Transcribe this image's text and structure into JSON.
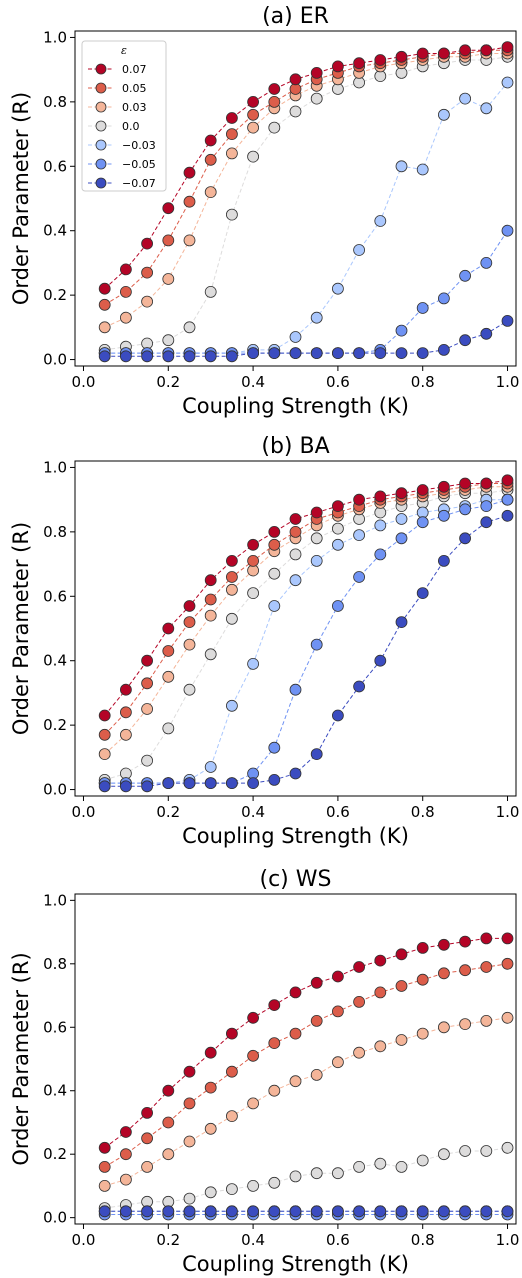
{
  "chart_data": [
    {
      "type": "line",
      "title": "(a) ER",
      "xlabel": "Coupling Strength (K)",
      "ylabel": "Order Parameter (R)",
      "xlim": [
        -0.02,
        1.02
      ],
      "ylim": [
        -0.02,
        1.02
      ],
      "xticks": [
        "0.0",
        "0.2",
        "0.4",
        "0.6",
        "0.8",
        "1.0"
      ],
      "yticks": [
        "0.0",
        "0.2",
        "0.4",
        "0.6",
        "0.8",
        "1.0"
      ],
      "grid": false,
      "legend": {
        "title": "ε",
        "placement": "top-left"
      },
      "x": [
        0.05,
        0.1,
        0.15,
        0.2,
        0.25,
        0.3,
        0.35,
        0.4,
        0.45,
        0.5,
        0.55,
        0.6,
        0.65,
        0.7,
        0.75,
        0.8,
        0.85,
        0.9,
        0.95,
        1.0
      ],
      "series": [
        {
          "name": "0.07",
          "color": "#b40426",
          "values": [
            0.22,
            0.28,
            0.36,
            0.47,
            0.58,
            0.68,
            0.75,
            0.8,
            0.84,
            0.87,
            0.89,
            0.91,
            0.92,
            0.93,
            0.94,
            0.95,
            0.95,
            0.96,
            0.96,
            0.97
          ]
        },
        {
          "name": "0.05",
          "color": "#dc5d4a",
          "values": [
            0.17,
            0.21,
            0.27,
            0.37,
            0.49,
            0.62,
            0.7,
            0.76,
            0.8,
            0.84,
            0.87,
            0.89,
            0.91,
            0.92,
            0.93,
            0.94,
            0.95,
            0.95,
            0.96,
            0.96
          ]
        },
        {
          "name": "0.03",
          "color": "#f4b599",
          "values": [
            0.1,
            0.13,
            0.18,
            0.25,
            0.37,
            0.52,
            0.64,
            0.72,
            0.78,
            0.82,
            0.85,
            0.87,
            0.89,
            0.91,
            0.92,
            0.93,
            0.94,
            0.94,
            0.95,
            0.95
          ]
        },
        {
          "name": "0.0",
          "color": "#dddcdc",
          "values": [
            0.03,
            0.04,
            0.05,
            0.06,
            0.1,
            0.21,
            0.45,
            0.63,
            0.72,
            0.77,
            0.81,
            0.84,
            0.86,
            0.88,
            0.89,
            0.91,
            0.92,
            0.93,
            0.93,
            0.94
          ]
        },
        {
          "name": "−0.03",
          "color": "#aac7fd",
          "values": [
            0.02,
            0.02,
            0.02,
            0.02,
            0.02,
            0.02,
            0.02,
            0.03,
            0.03,
            0.07,
            0.13,
            0.22,
            0.34,
            0.43,
            0.6,
            0.59,
            0.76,
            0.81,
            0.78,
            0.86
          ]
        },
        {
          "name": "−0.05",
          "color": "#6f92f3",
          "values": [
            0.02,
            0.02,
            0.02,
            0.02,
            0.02,
            0.02,
            0.02,
            0.02,
            0.02,
            0.02,
            0.02,
            0.02,
            0.02,
            0.03,
            0.09,
            0.16,
            0.19,
            0.26,
            0.3,
            0.4
          ]
        },
        {
          "name": "−0.07",
          "color": "#3b4cc0",
          "values": [
            0.01,
            0.01,
            0.01,
            0.01,
            0.01,
            0.01,
            0.01,
            0.02,
            0.02,
            0.02,
            0.02,
            0.02,
            0.02,
            0.02,
            0.02,
            0.02,
            0.03,
            0.06,
            0.08,
            0.12
          ]
        }
      ]
    },
    {
      "type": "line",
      "title": "(b) BA",
      "xlabel": "Coupling Strength (K)",
      "ylabel": "Order Parameter (R)",
      "xlim": [
        -0.02,
        1.02
      ],
      "ylim": [
        -0.02,
        1.02
      ],
      "xticks": [
        "0.0",
        "0.2",
        "0.4",
        "0.6",
        "0.8",
        "1.0"
      ],
      "yticks": [
        "0.0",
        "0.2",
        "0.4",
        "0.6",
        "0.8",
        "1.0"
      ],
      "grid": false,
      "x": [
        0.05,
        0.1,
        0.15,
        0.2,
        0.25,
        0.3,
        0.35,
        0.4,
        0.45,
        0.5,
        0.55,
        0.6,
        0.65,
        0.7,
        0.75,
        0.8,
        0.85,
        0.9,
        0.95,
        1.0
      ],
      "series": [
        {
          "color": "#b40426",
          "values": [
            0.23,
            0.31,
            0.4,
            0.5,
            0.57,
            0.65,
            0.71,
            0.76,
            0.8,
            0.84,
            0.86,
            0.88,
            0.9,
            0.91,
            0.92,
            0.93,
            0.94,
            0.95,
            0.95,
            0.96
          ]
        },
        {
          "color": "#dc5d4a",
          "values": [
            0.17,
            0.24,
            0.33,
            0.43,
            0.52,
            0.59,
            0.66,
            0.71,
            0.76,
            0.8,
            0.84,
            0.86,
            0.88,
            0.9,
            0.91,
            0.92,
            0.93,
            0.94,
            0.95,
            0.95
          ]
        },
        {
          "color": "#f4b599",
          "values": [
            0.11,
            0.17,
            0.25,
            0.35,
            0.45,
            0.54,
            0.62,
            0.68,
            0.74,
            0.78,
            0.82,
            0.85,
            0.87,
            0.89,
            0.9,
            0.91,
            0.92,
            0.93,
            0.94,
            0.94
          ]
        },
        {
          "color": "#dddcdc",
          "values": [
            0.03,
            0.05,
            0.09,
            0.19,
            0.31,
            0.42,
            0.53,
            0.61,
            0.67,
            0.73,
            0.78,
            0.81,
            0.84,
            0.86,
            0.88,
            0.89,
            0.91,
            0.92,
            0.92,
            0.93
          ]
        },
        {
          "color": "#aac7fd",
          "values": [
            0.02,
            0.02,
            0.02,
            0.02,
            0.03,
            0.07,
            0.26,
            0.39,
            0.57,
            0.65,
            0.71,
            0.76,
            0.79,
            0.82,
            0.84,
            0.86,
            0.87,
            0.88,
            0.9,
            0.9
          ]
        },
        {
          "color": "#6f92f3",
          "values": [
            0.02,
            0.02,
            0.02,
            0.02,
            0.02,
            0.02,
            0.02,
            0.05,
            0.13,
            0.31,
            0.45,
            0.57,
            0.66,
            0.73,
            0.78,
            0.83,
            0.85,
            0.87,
            0.88,
            0.9
          ]
        },
        {
          "color": "#3b4cc0",
          "values": [
            0.01,
            0.01,
            0.01,
            0.02,
            0.02,
            0.02,
            0.02,
            0.02,
            0.03,
            0.05,
            0.11,
            0.23,
            0.32,
            0.4,
            0.52,
            0.61,
            0.71,
            0.78,
            0.83,
            0.85
          ]
        }
      ]
    },
    {
      "type": "line",
      "title": "(c) WS",
      "xlabel": "Coupling Strength (K)",
      "ylabel": "Order Parameter (R)",
      "xlim": [
        -0.02,
        1.02
      ],
      "ylim": [
        -0.02,
        1.02
      ],
      "xticks": [
        "0.0",
        "0.2",
        "0.4",
        "0.6",
        "0.8",
        "1.0"
      ],
      "yticks": [
        "0.0",
        "0.2",
        "0.4",
        "0.6",
        "0.8",
        "1.0"
      ],
      "grid": false,
      "x": [
        0.05,
        0.1,
        0.15,
        0.2,
        0.25,
        0.3,
        0.35,
        0.4,
        0.45,
        0.5,
        0.55,
        0.6,
        0.65,
        0.7,
        0.75,
        0.8,
        0.85,
        0.9,
        0.95,
        1.0
      ],
      "series": [
        {
          "color": "#b40426",
          "values": [
            0.22,
            0.27,
            0.33,
            0.4,
            0.46,
            0.52,
            0.58,
            0.63,
            0.67,
            0.71,
            0.74,
            0.76,
            0.79,
            0.81,
            0.83,
            0.85,
            0.86,
            0.87,
            0.88,
            0.88
          ]
        },
        {
          "color": "#dc5d4a",
          "values": [
            0.16,
            0.2,
            0.25,
            0.3,
            0.36,
            0.41,
            0.46,
            0.51,
            0.55,
            0.58,
            0.62,
            0.65,
            0.68,
            0.71,
            0.73,
            0.75,
            0.77,
            0.78,
            0.79,
            0.8
          ]
        },
        {
          "color": "#f4b599",
          "values": [
            0.1,
            0.12,
            0.16,
            0.2,
            0.24,
            0.28,
            0.32,
            0.36,
            0.4,
            0.43,
            0.45,
            0.49,
            0.52,
            0.54,
            0.56,
            0.58,
            0.6,
            0.61,
            0.62,
            0.63
          ]
        },
        {
          "color": "#dddcdc",
          "values": [
            0.03,
            0.04,
            0.05,
            0.05,
            0.06,
            0.08,
            0.09,
            0.1,
            0.11,
            0.13,
            0.14,
            0.14,
            0.16,
            0.17,
            0.16,
            0.18,
            0.2,
            0.21,
            0.21,
            0.22
          ]
        },
        {
          "color": "#aac7fd",
          "values": [
            0.02,
            0.02,
            0.02,
            0.02,
            0.02,
            0.02,
            0.02,
            0.02,
            0.02,
            0.02,
            0.02,
            0.02,
            0.02,
            0.02,
            0.02,
            0.02,
            0.02,
            0.02,
            0.02,
            0.02
          ]
        },
        {
          "color": "#6f92f3",
          "values": [
            0.01,
            0.01,
            0.01,
            0.01,
            0.01,
            0.01,
            0.01,
            0.01,
            0.01,
            0.01,
            0.01,
            0.01,
            0.01,
            0.01,
            0.01,
            0.01,
            0.01,
            0.01,
            0.01,
            0.01
          ]
        },
        {
          "color": "#3b4cc0",
          "values": [
            0.02,
            0.02,
            0.02,
            0.02,
            0.02,
            0.02,
            0.02,
            0.02,
            0.02,
            0.02,
            0.02,
            0.02,
            0.02,
            0.02,
            0.02,
            0.02,
            0.02,
            0.02,
            0.02,
            0.02
          ]
        }
      ]
    }
  ]
}
